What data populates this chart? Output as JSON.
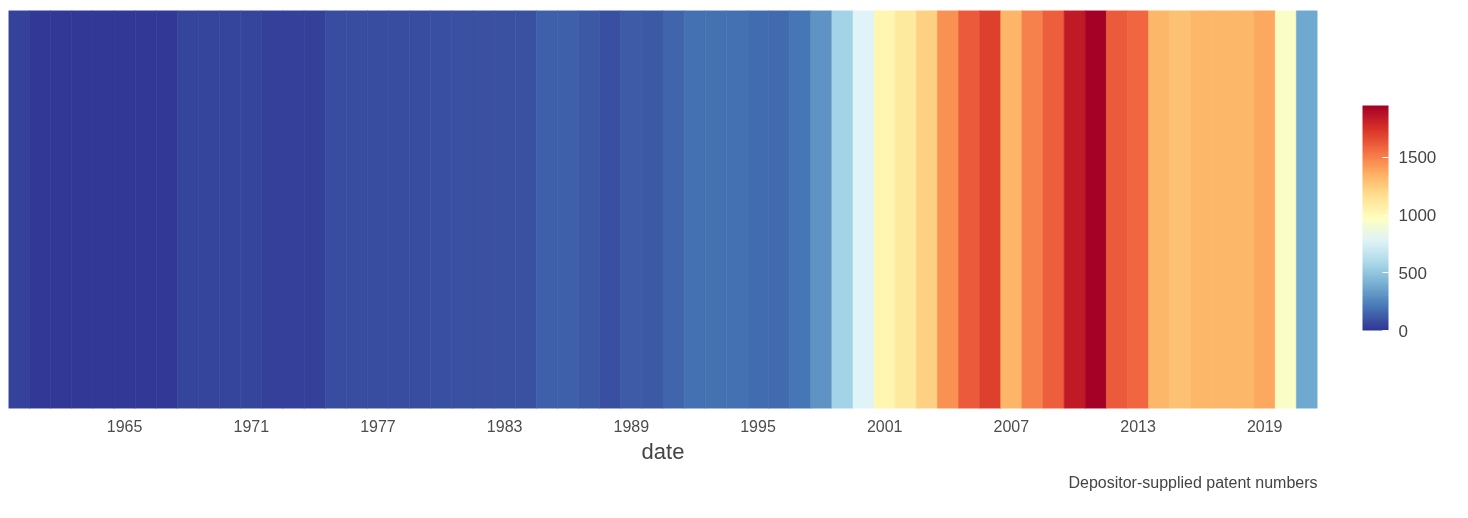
{
  "chart_data": {
    "type": "heatmap",
    "xlabel": "date",
    "categories": [
      null,
      null,
      null,
      null,
      null,
      "1965",
      null,
      null,
      null,
      null,
      null,
      "1971",
      null,
      null,
      null,
      null,
      null,
      "1977",
      null,
      null,
      null,
      null,
      null,
      "1983",
      null,
      null,
      null,
      null,
      null,
      "1989",
      null,
      null,
      null,
      null,
      null,
      "1995",
      null,
      null,
      null,
      null,
      null,
      "2001",
      null,
      null,
      null,
      null,
      null,
      "2007",
      null,
      null,
      null,
      null,
      null,
      "2013",
      null,
      null,
      null,
      null,
      null,
      "2019",
      null,
      null
    ],
    "y_categories": [
      null
    ],
    "cells": [
      [
        40,
        15,
        15,
        15,
        15,
        15,
        15,
        15,
        50,
        50,
        50,
        50,
        35,
        35,
        35,
        70,
        70,
        70,
        70,
        70,
        80,
        90,
        90,
        90,
        90,
        130,
        130,
        110,
        80,
        120,
        110,
        150,
        190,
        190,
        190,
        170,
        160,
        200,
        300,
        560,
        780,
        1030,
        1110,
        1230,
        1450,
        1620,
        1700,
        1340,
        1500,
        1600,
        1840,
        1950,
        1620,
        1580,
        1330,
        1290,
        1330,
        1330,
        1330,
        1380,
        950,
        380
      ]
    ],
    "clim": [
      0,
      1950
    ],
    "cticks": [
      0,
      500,
      1000,
      1500
    ],
    "annotations": [
      "Depositor-supplied patent numbers"
    ]
  }
}
